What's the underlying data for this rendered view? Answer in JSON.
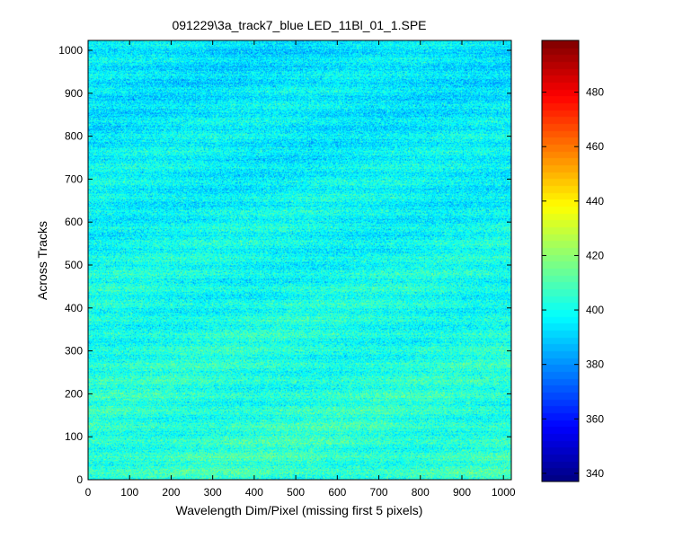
{
  "chart_data": {
    "type": "heatmap",
    "title": "091229\\3a_track7_blue LED_11Bl_01_1.SPE",
    "xlabel": "Wavelength Dim/Pixel (missing first 5 pixels)",
    "ylabel": "Across Tracks",
    "xlim": [
      0,
      1019
    ],
    "ylim": [
      0,
      1023
    ],
    "x_ticks": [
      0,
      100,
      200,
      300,
      400,
      500,
      600,
      700,
      800,
      900,
      1000
    ],
    "y_ticks": [
      0,
      100,
      200,
      300,
      400,
      500,
      600,
      700,
      800,
      900,
      1000
    ],
    "colorbar": {
      "range": [
        337,
        499
      ],
      "ticks": [
        340,
        360,
        380,
        400,
        420,
        440,
        460,
        480
      ],
      "colormap": "jet"
    },
    "pattern": {
      "description_values": "noisy field centered near 395-405 counts; slightly higher (~405-410) at low track numbers, lower (~390-395) near the top",
      "base_low_tracks": 406,
      "base_high_tracks": 393,
      "noise_amplitude": 12
    },
    "grid": false,
    "legend": "colorbar-right"
  }
}
